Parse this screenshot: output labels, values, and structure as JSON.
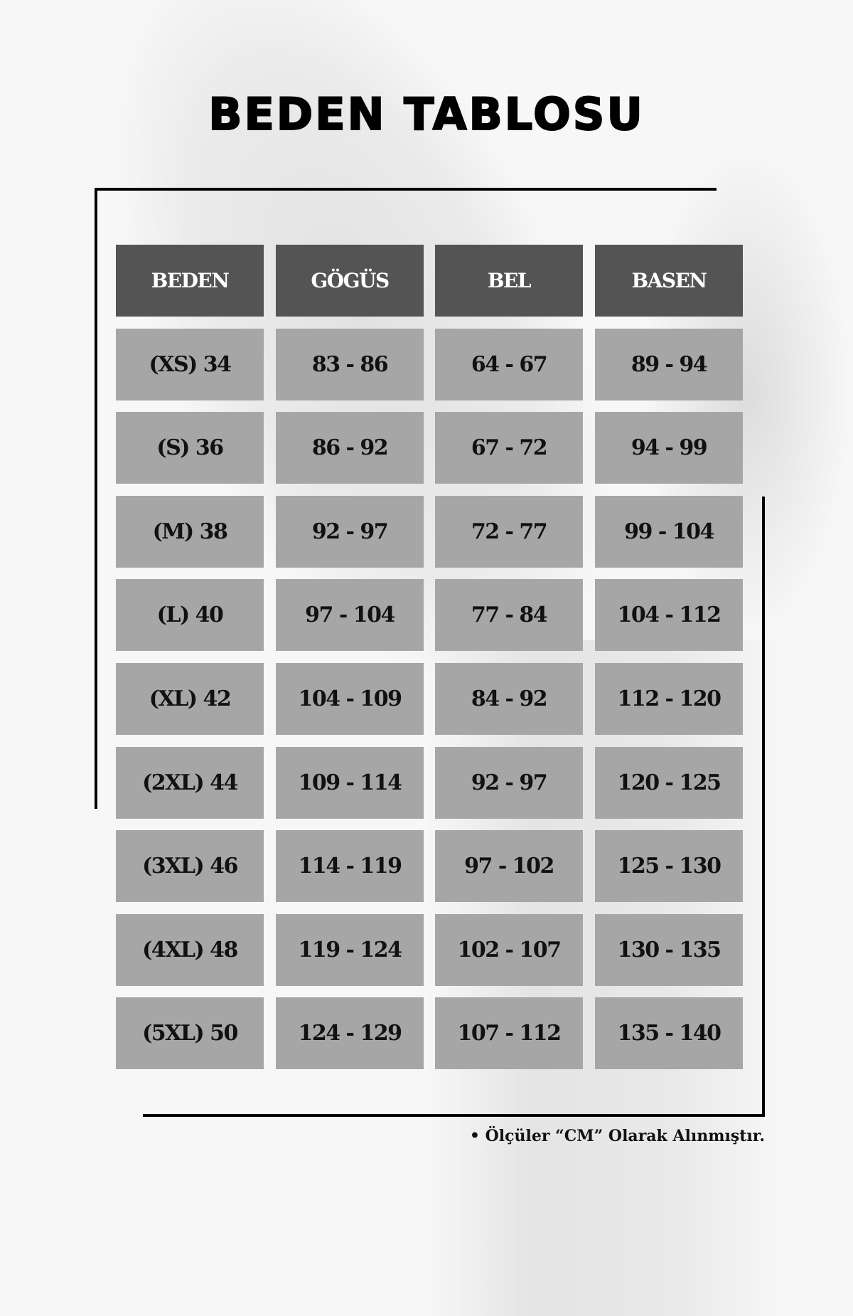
{
  "title": "BEDEN TABLOSU",
  "table": {
    "headers": [
      "BEDEN",
      "GÖGÜS",
      "BEL",
      "BASEN"
    ],
    "rows": [
      [
        "(XS) 34",
        "83 - 86",
        "64 - 67",
        "89 - 94"
      ],
      [
        "(S) 36",
        "86 - 92",
        "67 - 72",
        "94 - 99"
      ],
      [
        "(M) 38",
        "92 - 97",
        "72 - 77",
        "99 - 104"
      ],
      [
        "(L) 40",
        "97 - 104",
        "77 - 84",
        "104 - 112"
      ],
      [
        "(XL) 42",
        "104 - 109",
        "84 - 92",
        "112 - 120"
      ],
      [
        "(2XL) 44",
        "109 - 114",
        "92 - 97",
        "120 - 125"
      ],
      [
        "(3XL) 46",
        "114 - 119",
        "97 - 102",
        "125 - 130"
      ],
      [
        "(4XL) 48",
        "119 - 124",
        "102 - 107",
        "130 - 135"
      ],
      [
        "(5XL) 50",
        "124 - 129",
        "107 - 112",
        "135 - 140"
      ]
    ]
  },
  "note": "• Ölçüler “CM” Olarak Alınmıştır.",
  "colors": {
    "header_bg": "#545454",
    "cell_bg": "#a6a6a6",
    "frame": "#000000"
  }
}
